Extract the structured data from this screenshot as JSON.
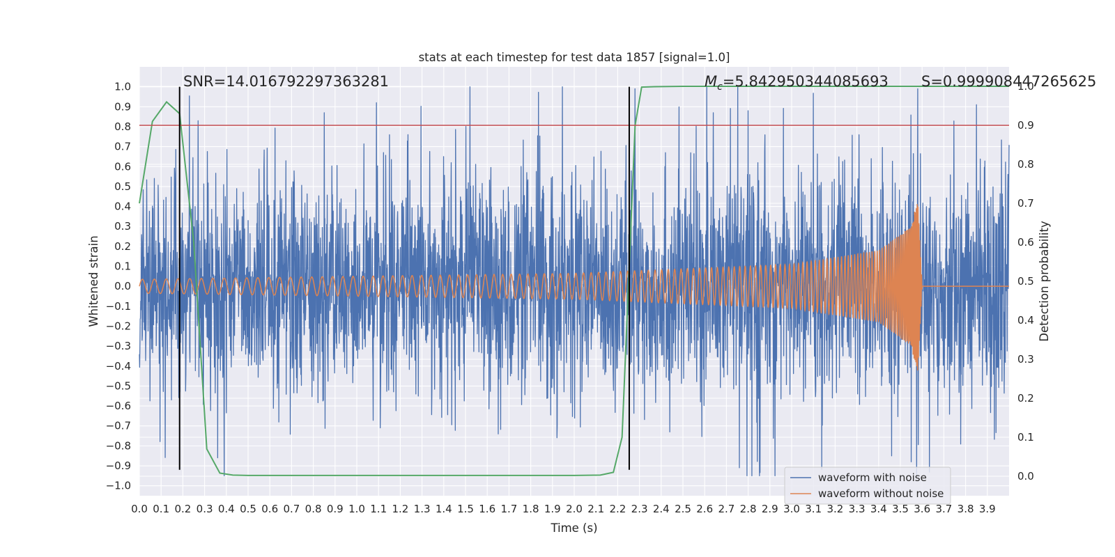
{
  "chart_data": {
    "type": "line",
    "title": "stats at each timestep for test data 1857 [signal=1.0]",
    "xlabel": "Time (s)",
    "ylabel": "Whitened strain",
    "ylabel_right": "Detection probability",
    "xlim": [
      0.0,
      4.0
    ],
    "ylim": [
      -1.05,
      1.1
    ],
    "ylim_right": [
      -0.05,
      1.05
    ],
    "x_ticks": [
      "0.0",
      "0.1",
      "0.2",
      "0.3",
      "0.4",
      "0.5",
      "0.6",
      "0.7",
      "0.8",
      "0.9",
      "1.0",
      "1.1",
      "1.2",
      "1.3",
      "1.4",
      "1.5",
      "1.6",
      "1.7",
      "1.8",
      "1.9",
      "2.0",
      "2.1",
      "2.2",
      "2.3",
      "2.4",
      "2.5",
      "2.6",
      "2.7",
      "2.8",
      "2.9",
      "3.0",
      "3.1",
      "3.2",
      "3.3",
      "3.4",
      "3.5",
      "3.6",
      "3.7",
      "3.8",
      "3.9"
    ],
    "y_ticks": [
      "1.0",
      "0.9",
      "0.8",
      "0.7",
      "0.6",
      "0.5",
      "0.4",
      "0.3",
      "0.2",
      "0.1",
      "0.0",
      "−0.1",
      "−0.2",
      "−0.3",
      "−0.4",
      "−0.5",
      "−0.6",
      "−0.7",
      "−0.8",
      "−0.9",
      "−1.0"
    ],
    "y_ticks_right": [
      "1.0",
      "0.9",
      "0.8",
      "0.7",
      "0.6",
      "0.5",
      "0.4",
      "0.3",
      "0.2",
      "0.1",
      "0.0"
    ],
    "annotations": {
      "snr": "SNR=14.016792297363281",
      "mc_symbol": "M",
      "mc_sub": "c",
      "mc_value": "=5.842950344085693",
      "s": "S=0.999908447265625"
    },
    "threshold_line": {
      "axis": "right",
      "value": 0.9,
      "color": "#c44e52"
    },
    "vertical_markers": {
      "x": [
        0.185,
        2.253
      ],
      "ymin": -0.92,
      "ymax": 1.0,
      "color": "#000000"
    },
    "series": [
      {
        "name": "waveform with noise",
        "color": "#4c72b0",
        "axis": "left",
        "description": "whitened noisy strain, approx. range -0.95 to 1.0",
        "peaks": [
          {
            "x": 0.27,
            "y": 0.83
          },
          {
            "x": 0.85,
            "y": 0.87
          },
          {
            "x": 1.09,
            "y": 0.92
          },
          {
            "x": 2.28,
            "y": 0.99
          },
          {
            "x": 2.64,
            "y": 0.87
          },
          {
            "x": 2.8,
            "y": 0.88
          },
          {
            "x": 3.58,
            "y": 0.99
          },
          {
            "x": 3.85,
            "y": 0.91
          },
          {
            "x": 0.36,
            "y": -0.86
          },
          {
            "x": 2.76,
            "y": -0.91
          },
          {
            "x": 3.55,
            "y": -0.88
          },
          {
            "x": 3.46,
            "y": -0.85
          }
        ]
      },
      {
        "name": "waveform without noise",
        "color": "#dd8452",
        "axis": "left",
        "description": "chirp signal growing in amplitude and frequency, merger near 3.58 s, then flat 0",
        "envelope": [
          {
            "x": 0.0,
            "amp": 0.035
          },
          {
            "x": 1.0,
            "amp": 0.05
          },
          {
            "x": 2.0,
            "amp": 0.065
          },
          {
            "x": 3.0,
            "amp": 0.11
          },
          {
            "x": 3.4,
            "amp": 0.18
          },
          {
            "x": 3.55,
            "amp": 0.3
          },
          {
            "x": 3.58,
            "amp": 0.45
          },
          {
            "x": 3.6,
            "amp": 0.0
          },
          {
            "x": 4.0,
            "amp": 0.0
          }
        ]
      },
      {
        "name": "detection probability",
        "color": "#55a868",
        "axis": "right",
        "x": [
          0.0,
          0.06,
          0.125,
          0.185,
          0.25,
          0.31,
          0.37,
          0.43,
          0.5,
          1.0,
          1.5,
          2.0,
          2.12,
          2.18,
          2.22,
          2.25,
          2.28,
          2.31,
          2.37,
          2.5,
          3.0,
          3.5,
          4.0
        ],
        "values": [
          0.7,
          0.91,
          0.96,
          0.93,
          0.6,
          0.07,
          0.008,
          0.003,
          0.002,
          0.002,
          0.002,
          0.002,
          0.003,
          0.01,
          0.1,
          0.5,
          0.9,
          0.998,
          0.999,
          1.0,
          1.0,
          1.0,
          1.0
        ]
      }
    ],
    "legend": {
      "position": "lower-right",
      "entries": [
        "waveform with noise",
        "waveform without noise"
      ]
    }
  }
}
